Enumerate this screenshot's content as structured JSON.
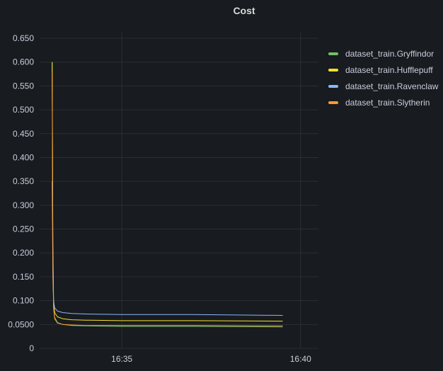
{
  "panel": {
    "title": "Cost"
  },
  "colors": {
    "background": "#181b1f",
    "grid": "#2b2e33",
    "text": "#ccccdc"
  },
  "chart_data": {
    "type": "line",
    "title": "Cost",
    "xlabel": "",
    "ylabel": "",
    "x_ticks": [
      "16:35",
      "16:40"
    ],
    "y_ticks": [
      "0",
      "0.0500",
      "0.100",
      "0.150",
      "0.200",
      "0.250",
      "0.300",
      "0.350",
      "0.400",
      "0.450",
      "0.500",
      "0.550",
      "0.600",
      "0.650"
    ],
    "ylim": [
      0,
      0.65
    ],
    "xlim_minutes": [
      32.7,
      40.5
    ],
    "grid": true,
    "legend_position": "right",
    "series": [
      {
        "name": "dataset_train.Gryffindor",
        "color": "#73bf69",
        "x": [
          33.05,
          33.06,
          33.07,
          33.09,
          33.12,
          33.2,
          33.35,
          33.6,
          34.0,
          35.0,
          37.0,
          39.5
        ],
        "y": [
          0.6,
          0.4,
          0.2,
          0.09,
          0.065,
          0.054,
          0.05,
          0.048,
          0.047,
          0.046,
          0.046,
          0.045
        ]
      },
      {
        "name": "dataset_train.Hufflepuff",
        "color": "#fade2a",
        "x": [
          33.05,
          33.06,
          33.07,
          33.09,
          33.12,
          33.2,
          33.35,
          33.6,
          34.0,
          35.0,
          37.0,
          39.5
        ],
        "y": [
          0.6,
          0.42,
          0.22,
          0.1,
          0.075,
          0.066,
          0.062,
          0.06,
          0.059,
          0.058,
          0.058,
          0.057
        ]
      },
      {
        "name": "dataset_train.Ravenclaw",
        "color": "#8ab8ff",
        "x": [
          33.05,
          33.06,
          33.07,
          33.09,
          33.12,
          33.2,
          33.35,
          33.6,
          34.0,
          35.0,
          37.0,
          39.5
        ],
        "y": [
          0.35,
          0.25,
          0.15,
          0.1,
          0.085,
          0.078,
          0.075,
          0.073,
          0.072,
          0.071,
          0.071,
          0.069
        ]
      },
      {
        "name": "dataset_train.Slytherin",
        "color": "#ff9830",
        "x": [
          33.05,
          33.06,
          33.07,
          33.09,
          33.12,
          33.2,
          33.35,
          33.6,
          34.0,
          35.0,
          37.0,
          39.5
        ],
        "y": [
          0.58,
          0.38,
          0.18,
          0.085,
          0.062,
          0.053,
          0.05,
          0.049,
          0.048,
          0.048,
          0.048,
          0.047
        ]
      }
    ]
  }
}
